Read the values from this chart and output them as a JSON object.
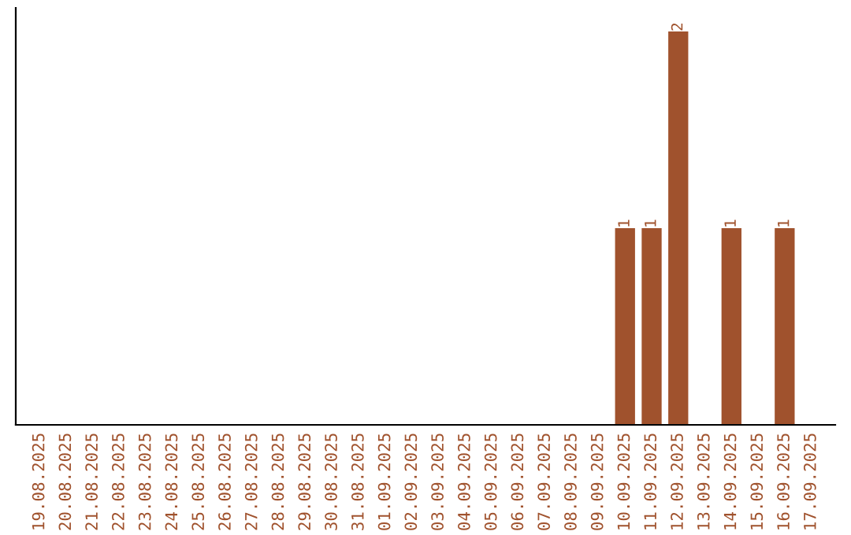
{
  "chart_data": {
    "type": "bar",
    "categories": [
      "19.08.2025",
      "20.08.2025",
      "21.08.2025",
      "22.08.2025",
      "23.08.2025",
      "24.08.2025",
      "25.08.2025",
      "26.08.2025",
      "27.08.2025",
      "28.08.2025",
      "29.08.2025",
      "30.08.2025",
      "31.08.2025",
      "01.09.2025",
      "02.09.2025",
      "03.09.2025",
      "04.09.2025",
      "05.09.2025",
      "06.09.2025",
      "07.09.2025",
      "08.09.2025",
      "09.09.2025",
      "10.09.2025",
      "11.09.2025",
      "12.09.2025",
      "13.09.2025",
      "14.09.2025",
      "15.09.2025",
      "16.09.2025",
      "17.09.2025"
    ],
    "values": [
      null,
      null,
      null,
      null,
      null,
      null,
      null,
      null,
      null,
      null,
      null,
      null,
      null,
      null,
      null,
      null,
      null,
      null,
      null,
      null,
      null,
      null,
      1,
      1,
      2,
      null,
      1,
      null,
      1,
      null
    ],
    "data_labels": true,
    "color": "#a0522d",
    "grid": false,
    "legend": false
  }
}
